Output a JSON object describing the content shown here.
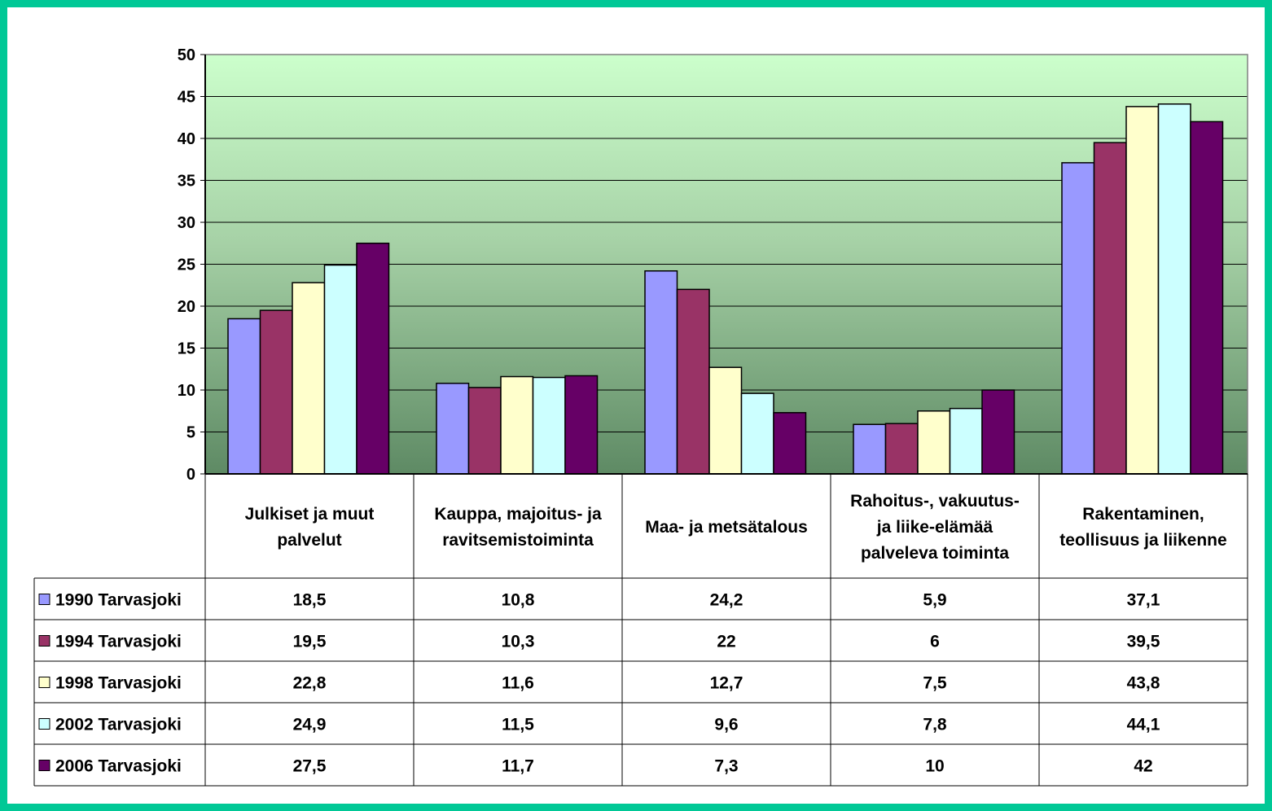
{
  "chart_data": {
    "type": "bar",
    "title": "",
    "xlabel": "",
    "ylabel": "",
    "ylim": [
      0,
      50
    ],
    "yticks": [
      0,
      5,
      10,
      15,
      20,
      25,
      30,
      35,
      40,
      45,
      50
    ],
    "grid": true,
    "legend": "data-table-left",
    "categories": [
      [
        "Julkiset ja muut",
        "palvelut"
      ],
      [
        "Kauppa, majoitus- ja",
        "ravitsemistoiminta"
      ],
      [
        "Maa- ja metsätalous"
      ],
      [
        "Rahoitus-, vakuutus-",
        "ja liike-elämää",
        "palveleva toiminta"
      ],
      [
        "Rakentaminen,",
        "teollisuus ja liikenne"
      ]
    ],
    "series": [
      {
        "name": "1990 Tarvasjoki",
        "color": "#9999ff",
        "values": [
          18.5,
          10.8,
          24.2,
          5.9,
          37.1
        ],
        "labels": [
          "18,5",
          "10,8",
          "24,2",
          "5,9",
          "37,1"
        ]
      },
      {
        "name": "1994 Tarvasjoki",
        "color": "#993366",
        "values": [
          19.5,
          10.3,
          22,
          6,
          39.5
        ],
        "labels": [
          "19,5",
          "10,3",
          "22",
          "6",
          "39,5"
        ]
      },
      {
        "name": "1998 Tarvasjoki",
        "color": "#ffffcc",
        "values": [
          22.8,
          11.6,
          12.7,
          7.5,
          43.8
        ],
        "labels": [
          "22,8",
          "11,6",
          "12,7",
          "7,5",
          "43,8"
        ]
      },
      {
        "name": "2002 Tarvasjoki",
        "color": "#ccffff",
        "values": [
          24.9,
          11.5,
          9.6,
          7.8,
          44.1
        ],
        "labels": [
          "24,9",
          "11,5",
          "9,6",
          "7,8",
          "44,1"
        ]
      },
      {
        "name": "2006 Tarvasjoki",
        "color": "#660066",
        "values": [
          27.5,
          11.7,
          7.3,
          10,
          42
        ],
        "labels": [
          "27,5",
          "11,7",
          "7,3",
          "10",
          "42"
        ]
      }
    ]
  }
}
